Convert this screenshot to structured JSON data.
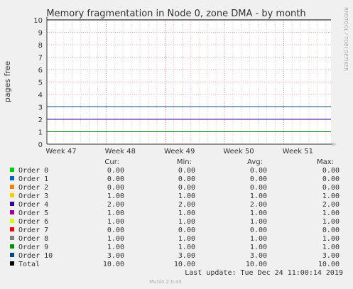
{
  "chart_data": {
    "type": "line",
    "title": "Memory fragmentation in Node 0, zone DMA - by month",
    "ylabel": "pages free",
    "xlabel": "",
    "ylim": [
      0,
      10
    ],
    "y_ticks": [
      "0",
      "1",
      "2",
      "3",
      "4",
      "5",
      "6",
      "7",
      "8",
      "9",
      "10"
    ],
    "x_ticks": [
      "Week 47",
      "Week 48",
      "Week 49",
      "Week 50",
      "Week 51"
    ],
    "grid": true,
    "side_label": "RRDTOOL / TOBI OETIKER",
    "series": [
      {
        "name": "Order 0",
        "color": "#00cc00",
        "value": 0.0
      },
      {
        "name": "Order 1",
        "color": "#0066b3",
        "value": 0.0
      },
      {
        "name": "Order 2",
        "color": "#ff8000",
        "value": 0.0
      },
      {
        "name": "Order 3",
        "color": "#ffcc00",
        "value": 1.0
      },
      {
        "name": "Order 4",
        "color": "#330099",
        "value": 2.0
      },
      {
        "name": "Order 5",
        "color": "#990099",
        "value": 1.0
      },
      {
        "name": "Order 6",
        "color": "#ccff00",
        "value": 1.0
      },
      {
        "name": "Order 7",
        "color": "#ff0000",
        "value": 0.0
      },
      {
        "name": "Order 8",
        "color": "#808080",
        "value": 1.0
      },
      {
        "name": "Order 9",
        "color": "#008f00",
        "value": 1.0
      },
      {
        "name": "Order 10",
        "color": "#00487d",
        "value": 3.0
      },
      {
        "name": "Total",
        "color": "#000000",
        "value": 10.0
      }
    ],
    "legend": {
      "headers": [
        "Cur:",
        "Min:",
        "Avg:",
        "Max:"
      ],
      "rows": [
        {
          "name": "Order 0",
          "cur": "0.00",
          "min": "0.00",
          "avg": "0.00",
          "max": "0.00"
        },
        {
          "name": "Order 1",
          "cur": "0.00",
          "min": "0.00",
          "avg": "0.00",
          "max": "0.00"
        },
        {
          "name": "Order 2",
          "cur": "0.00",
          "min": "0.00",
          "avg": "0.00",
          "max": "0.00"
        },
        {
          "name": "Order 3",
          "cur": "1.00",
          "min": "1.00",
          "avg": "1.00",
          "max": "1.00"
        },
        {
          "name": "Order 4",
          "cur": "2.00",
          "min": "2.00",
          "avg": "2.00",
          "max": "2.00"
        },
        {
          "name": "Order 5",
          "cur": "1.00",
          "min": "1.00",
          "avg": "1.00",
          "max": "1.00"
        },
        {
          "name": "Order 6",
          "cur": "1.00",
          "min": "1.00",
          "avg": "1.00",
          "max": "1.00"
        },
        {
          "name": "Order 7",
          "cur": "0.00",
          "min": "0.00",
          "avg": "0.00",
          "max": "0.00"
        },
        {
          "name": "Order 8",
          "cur": "1.00",
          "min": "1.00",
          "avg": "1.00",
          "max": "1.00"
        },
        {
          "name": "Order 9",
          "cur": "1.00",
          "min": "1.00",
          "avg": "1.00",
          "max": "1.00"
        },
        {
          "name": "Order 10",
          "cur": "3.00",
          "min": "3.00",
          "avg": "3.00",
          "max": "3.00"
        },
        {
          "name": "Total",
          "cur": "10.00",
          "min": "10.00",
          "avg": "10.00",
          "max": "10.00"
        }
      ]
    },
    "last_update": "Last update: Tue Dec 24 11:00:14 2019",
    "footer": "Munin 2.0.43"
  }
}
